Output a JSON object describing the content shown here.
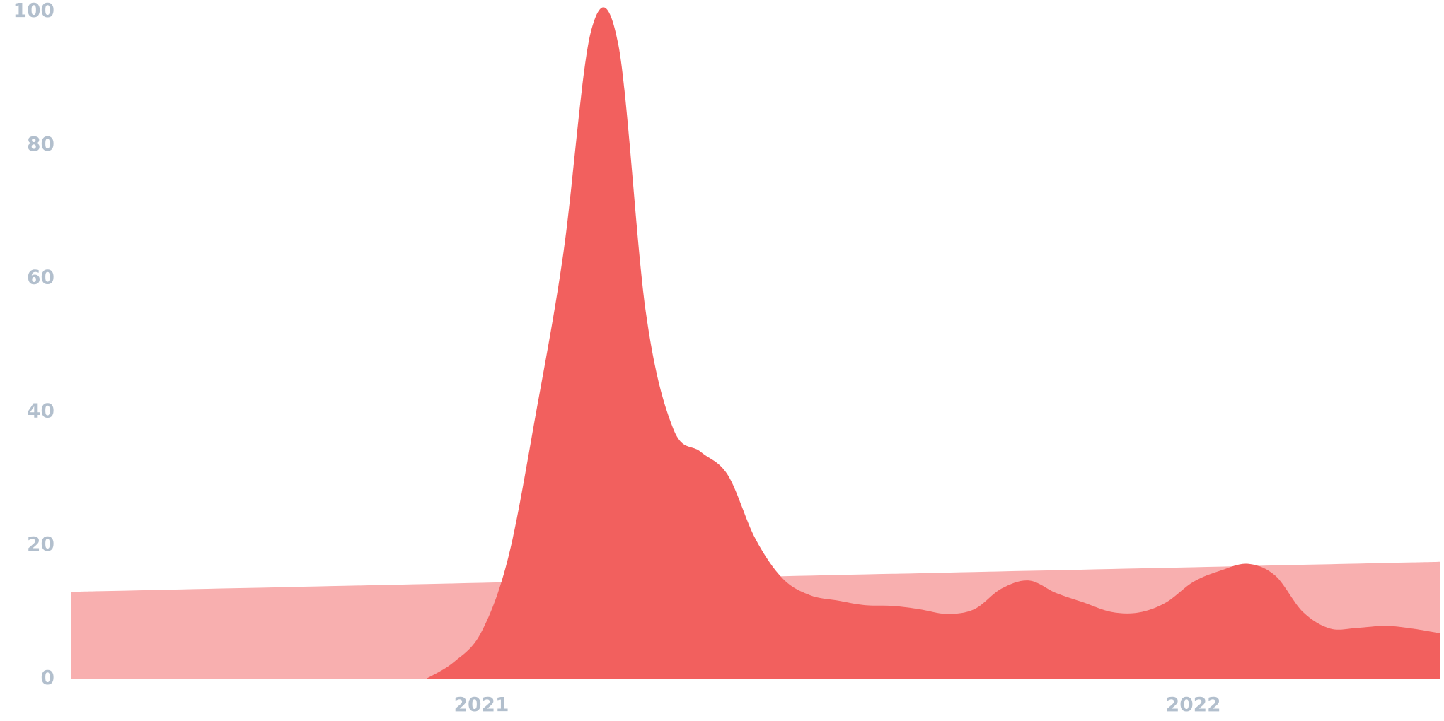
{
  "chart_data": {
    "type": "area",
    "categories": [
      null,
      null,
      null,
      null,
      null,
      null,
      null,
      null,
      null,
      null,
      null,
      null,
      null,
      null,
      null,
      "2021",
      null,
      null,
      null,
      null,
      null,
      null,
      null,
      null,
      null,
      null,
      null,
      null,
      null,
      null,
      null,
      null,
      null,
      null,
      null,
      null,
      null,
      null,
      null,
      null,
      null,
      "2022",
      null,
      null,
      null,
      null,
      null,
      null,
      null,
      null,
      null
    ],
    "series": [
      {
        "color": "#f8afaf",
        "values": [
          13,
          13.09,
          13.18,
          13.27,
          13.36,
          13.45,
          13.54,
          13.63,
          13.72,
          13.81,
          13.9,
          13.99,
          14.08,
          14.17,
          14.26,
          14.35,
          14.44,
          14.53,
          14.62,
          14.71,
          14.8,
          14.89,
          14.98,
          15.07,
          15.16,
          15.25,
          15.34,
          15.43,
          15.52,
          15.61,
          15.7,
          15.79,
          15.88,
          15.97,
          16.06,
          16.15,
          16.24,
          16.33,
          16.42,
          16.51,
          16.6,
          16.69,
          16.78,
          16.87,
          16.96,
          17.05,
          17.14,
          17.23,
          17.32,
          17.41,
          17.5
        ]
      },
      {
        "color": "#f2605e",
        "values": [
          null,
          null,
          null,
          null,
          null,
          null,
          null,
          null,
          null,
          null,
          null,
          null,
          null,
          0,
          2.5,
          7,
          18.5,
          40,
          64,
          97,
          95,
          55,
          37.5,
          34,
          30.5,
          21,
          15,
          12.5,
          11.7,
          11,
          10.9,
          10.4,
          9.7,
          10.4,
          13.5,
          14.7,
          12.8,
          11.4,
          10,
          9.9,
          11.4,
          14.5,
          16.2,
          17.2,
          15.4,
          10,
          7.5,
          7.6,
          7.9,
          7.5,
          6.8
        ]
      }
    ],
    "ylim": [
      0,
      100
    ],
    "yticks": [
      0,
      20,
      40,
      60,
      80,
      100
    ]
  }
}
